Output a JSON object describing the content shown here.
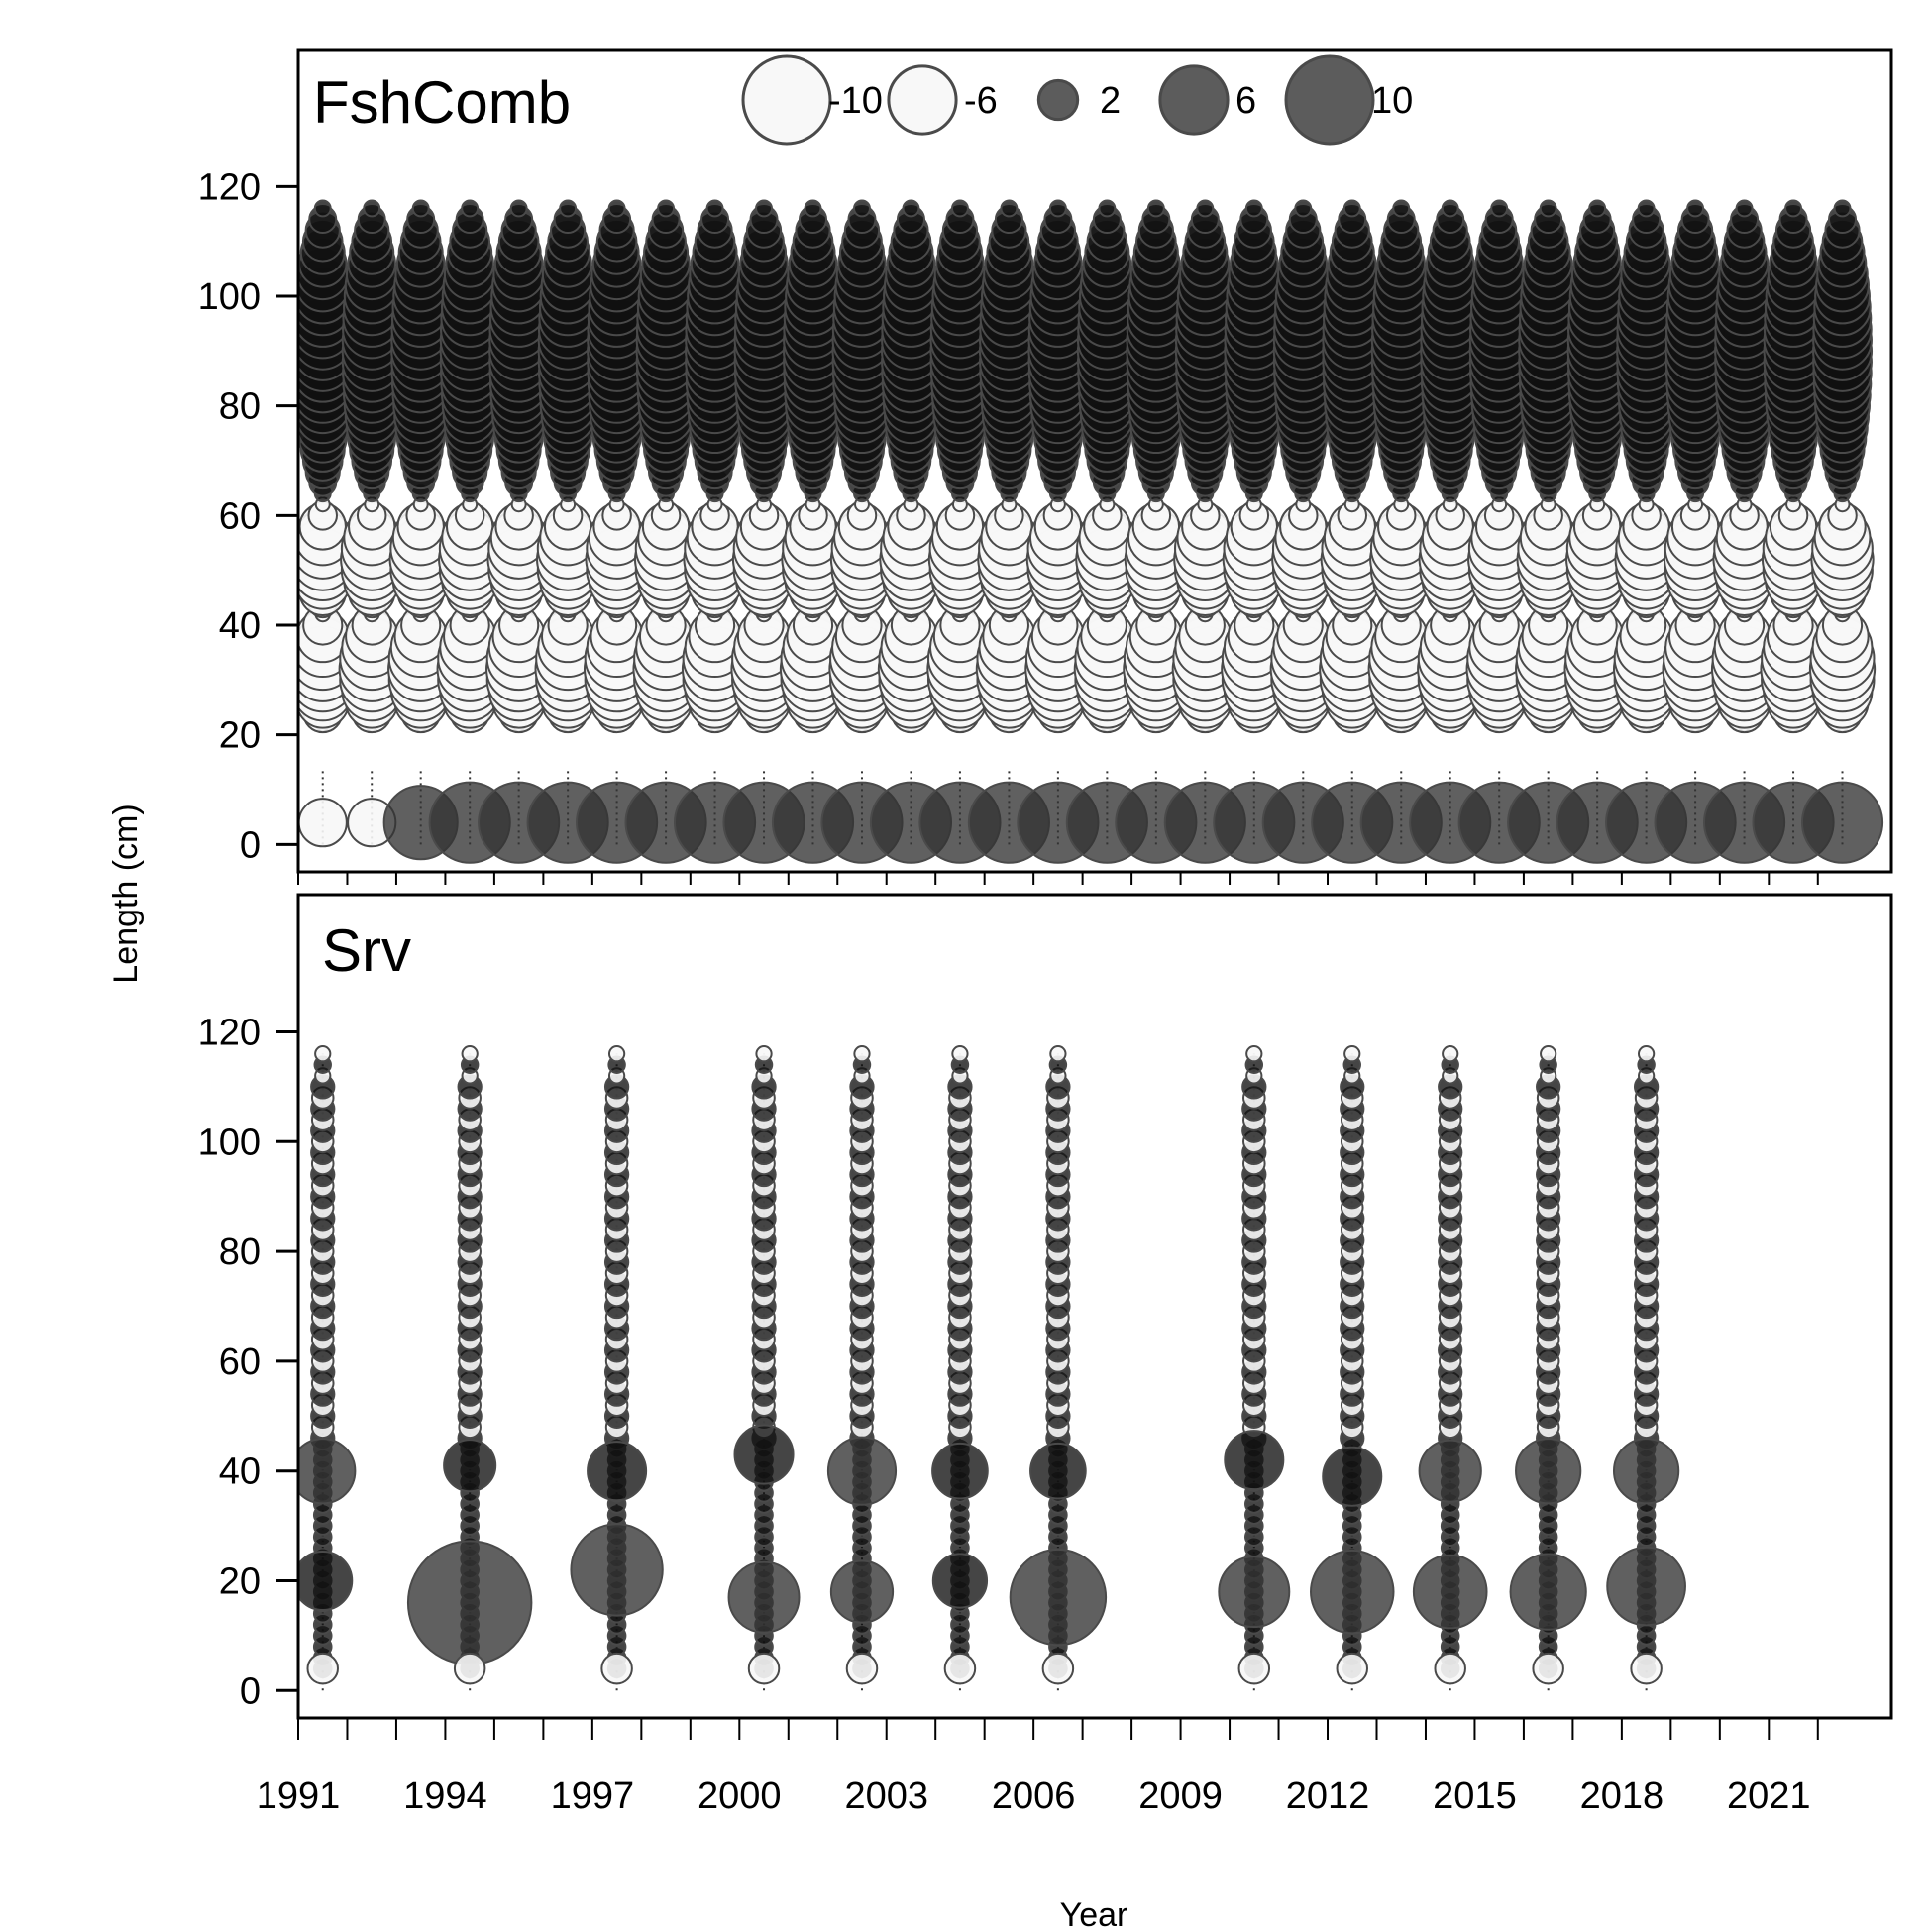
{
  "chart_data": {
    "type": "scatter",
    "subtype": "bubble residual plot",
    "xlabel": "Year",
    "ylabel": "Length (cm)",
    "x_tick_labels": [
      "1991",
      "1994",
      "1997",
      "2000",
      "2003",
      "2006",
      "2009",
      "2012",
      "2015",
      "2018",
      "2021"
    ],
    "y_ticks": [
      0,
      20,
      40,
      60,
      80,
      100,
      120
    ],
    "xlim": [
      1990.5,
      2023
    ],
    "ylim": [
      -5,
      145
    ],
    "legend": {
      "position": "top-center",
      "entries": [
        {
          "label": "-10",
          "value": -10
        },
        {
          "label": "-6",
          "value": -6
        },
        {
          "label": "2",
          "value": 2
        },
        {
          "label": "6",
          "value": 6
        },
        {
          "label": "10",
          "value": 10
        }
      ]
    },
    "colors": {
      "positive_fill": "#111111",
      "negative_fill": "#f7f7f7",
      "stroke": "#4a4a4a",
      "positive_large": "#333333"
    },
    "panels": [
      {
        "label": "FshComb",
        "years": [
          1991,
          1992,
          1993,
          1994,
          1995,
          1996,
          1997,
          1998,
          1999,
          2000,
          2001,
          2002,
          2003,
          2004,
          2005,
          2006,
          2007,
          2008,
          2009,
          2010,
          2011,
          2012,
          2013,
          2014,
          2015,
          2016,
          2017,
          2018,
          2019,
          2020,
          2021,
          2022
        ],
        "length_bins": [
          4,
          6,
          8,
          10,
          12,
          14,
          16,
          18,
          20,
          22,
          24,
          26,
          28,
          30,
          32,
          34,
          36,
          38,
          40,
          42,
          44,
          46,
          48,
          50,
          52,
          54,
          56,
          58,
          60,
          62,
          64,
          66,
          68,
          70,
          72,
          74,
          76,
          78,
          80,
          82,
          84,
          86,
          88,
          90,
          92,
          94,
          96,
          98,
          100,
          102,
          104,
          106,
          108,
          110,
          112,
          114,
          116
        ],
        "residual_bands_by_length": [
          {
            "from": 22,
            "to": 42,
            "sign": "negative",
            "peak_value": -5.5,
            "peak_length": 32
          },
          {
            "from": 44,
            "to": 62,
            "sign": "negative",
            "peak_value": -5,
            "peak_length": 52
          },
          {
            "from": 62,
            "to": 116,
            "sign": "positive",
            "peak_value": 4.5,
            "peak_length": 90
          },
          {
            "from": 4,
            "to": 4,
            "sign": "positive",
            "peak_value": 8.5,
            "peak_length": 4
          }
        ]
      },
      {
        "label": "Srv",
        "years": [
          1991,
          1994,
          1997,
          2000,
          2002,
          2004,
          2006,
          2010,
          2012,
          2014,
          2016,
          2018
        ],
        "length_bins": [
          4,
          6,
          8,
          10,
          12,
          14,
          16,
          18,
          20,
          22,
          24,
          26,
          28,
          30,
          32,
          34,
          36,
          38,
          40,
          42,
          44,
          46,
          48,
          50,
          52,
          54,
          56,
          58,
          60,
          62,
          64,
          66,
          68,
          70,
          72,
          74,
          76,
          78,
          80,
          82,
          84,
          86,
          88,
          90,
          92,
          94,
          96,
          98,
          100,
          102,
          104,
          106,
          108,
          110,
          112,
          114,
          116
        ],
        "residual_peaks": [
          {
            "year": 1991,
            "length": 20,
            "value": 4.5
          },
          {
            "year": 1991,
            "length": 40,
            "value": 5.5
          },
          {
            "year": 1994,
            "length": 16,
            "value": 20
          },
          {
            "year": 1994,
            "length": 41,
            "value": 3.5
          },
          {
            "year": 1997,
            "length": 22,
            "value": 11
          },
          {
            "year": 1997,
            "length": 40,
            "value": 4.5
          },
          {
            "year": 2000,
            "length": 17,
            "value": 6.5
          },
          {
            "year": 2000,
            "length": 43,
            "value": 4.5
          },
          {
            "year": 2002,
            "length": 18,
            "value": 5
          },
          {
            "year": 2002,
            "length": 40,
            "value": 6
          },
          {
            "year": 2004,
            "length": 20,
            "value": 3.8
          },
          {
            "year": 2004,
            "length": 40,
            "value": 4
          },
          {
            "year": 2006,
            "length": 17,
            "value": 12
          },
          {
            "year": 2006,
            "length": 40,
            "value": 4
          },
          {
            "year": 2010,
            "length": 18,
            "value": 6.5
          },
          {
            "year": 2010,
            "length": 42,
            "value": 4.5
          },
          {
            "year": 2012,
            "length": 18,
            "value": 9
          },
          {
            "year": 2012,
            "length": 39,
            "value": 4.5
          },
          {
            "year": 2014,
            "length": 18,
            "value": 7
          },
          {
            "year": 2014,
            "length": 40,
            "value": 5
          },
          {
            "year": 2016,
            "length": 18,
            "value": 7.5
          },
          {
            "year": 2016,
            "length": 40,
            "value": 5.5
          },
          {
            "year": 2018,
            "length": 19,
            "value": 8
          },
          {
            "year": 2018,
            "length": 40,
            "value": 5.5
          }
        ]
      }
    ]
  }
}
